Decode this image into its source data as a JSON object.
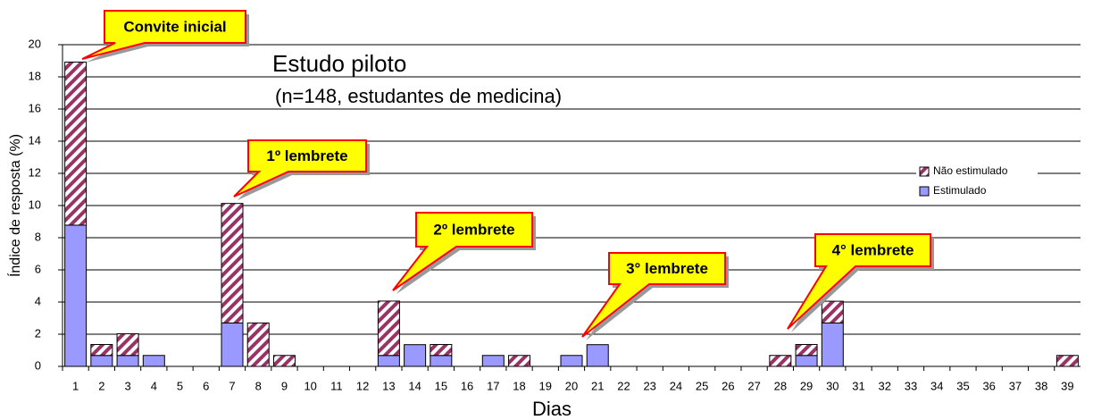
{
  "chart_data": {
    "type": "stacked_bar",
    "title": "Estudo piloto",
    "subtitle": "(n=148, estudantes de medicina)",
    "x_label": "Dias",
    "y_label": "Índice de resposta (%)",
    "categories": [
      "1",
      "2",
      "3",
      "4",
      "5",
      "6",
      "7",
      "8",
      "9",
      "10",
      "11",
      "12",
      "13",
      "14",
      "15",
      "16",
      "17",
      "18",
      "19",
      "20",
      "21",
      "22",
      "23",
      "24",
      "25",
      "26",
      "27",
      "28",
      "29",
      "30",
      "31",
      "32",
      "33",
      "34",
      "35",
      "36",
      "37",
      "38",
      "39"
    ],
    "series": [
      {
        "name": "Estimulado",
        "color": "#9999ff",
        "hatch": false,
        "values": [
          8.78,
          0.68,
          0.68,
          0.68,
          0,
          0,
          2.7,
          0,
          0,
          0,
          0,
          0,
          0.68,
          1.35,
          0.68,
          0,
          0.68,
          0,
          0,
          0.68,
          1.35,
          0,
          0,
          0,
          0,
          0,
          0,
          0,
          0.68,
          2.7,
          0,
          0,
          0,
          0,
          0,
          0,
          0,
          0,
          0
        ]
      },
      {
        "name": "Não estimulado",
        "color": "#993366",
        "hatch": true,
        "values": [
          10.14,
          0.68,
          1.35,
          0,
          0,
          0,
          7.43,
          2.7,
          0.68,
          0,
          0,
          0,
          3.38,
          0,
          0.68,
          0,
          0,
          0.68,
          0,
          0,
          0,
          0,
          0,
          0,
          0,
          0,
          0,
          0.68,
          0.68,
          1.35,
          0,
          0,
          0,
          0,
          0,
          0,
          0,
          0,
          0.68
        ]
      }
    ],
    "annotations": [
      "Convite inicial",
      "1º lembrete",
      "2º lembrete",
      "3° lembrete",
      "4° lembrete"
    ],
    "ylim": [
      0,
      20
    ],
    "yticks": [
      0,
      2,
      4,
      6,
      8,
      10,
      12,
      14,
      16,
      18,
      20
    ],
    "grid": true,
    "legend": "right"
  }
}
